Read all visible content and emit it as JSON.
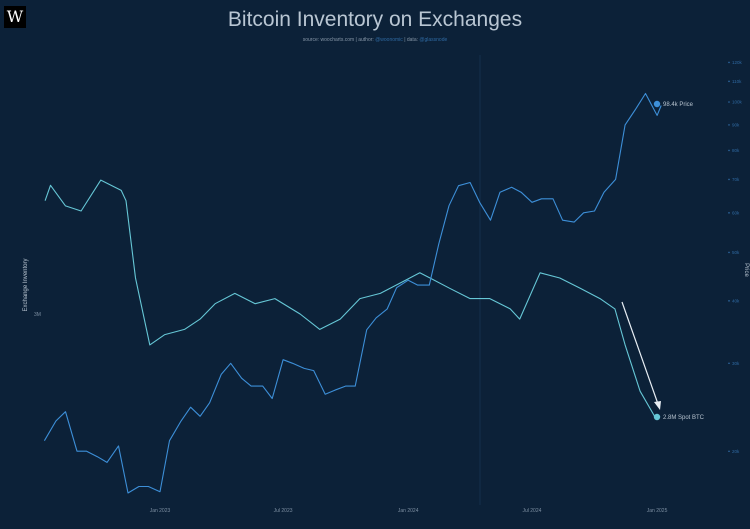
{
  "header": {
    "logo": "W",
    "title": "Bitcoin Inventory on Exchanges",
    "source_label": "source:",
    "source": "woocharts.com",
    "author_label": "| author:",
    "author": "@woonomic",
    "data_label": "| data:",
    "data": "@glassnode"
  },
  "colors": {
    "background": "#0c2138",
    "inventory": "#66c7d6",
    "price": "#3d8fd8",
    "arrow": "#e8eef4"
  },
  "chart_data": {
    "type": "line",
    "title": "Bitcoin Inventory on Exchanges",
    "ylabel_left": "Exchange Inventory",
    "ylabel_right": "Price",
    "x_ticks": [
      "Jan 2023",
      "Jul 2023",
      "Jan 2024",
      "Jul 2024",
      "Jan 2025"
    ],
    "left_ticks": [
      "3M"
    ],
    "right_ticks": [
      "120k",
      "110k",
      "100k",
      "90k",
      "80k",
      "70k",
      "60k",
      "50k",
      "40k",
      "30k",
      "20k"
    ],
    "right_scale": "log",
    "grid": false,
    "annotations": [
      "98.4k Price",
      "2.8M Spot BTC"
    ],
    "series": [
      {
        "name": "Spot BTC",
        "axis": "left",
        "unit": "M BTC",
        "x": [
          "2022-07-16",
          "2022-07-24",
          "2022-08-15",
          "2022-09-07",
          "2022-10-06",
          "2022-11-05",
          "2022-11-12",
          "2022-11-26",
          "2022-12-17",
          "2023-01-08",
          "2023-02-06",
          "2023-03-01",
          "2023-03-23",
          "2023-04-21",
          "2023-05-21",
          "2023-06-19",
          "2023-07-26",
          "2023-08-24",
          "2023-09-23",
          "2023-10-22",
          "2023-11-21",
          "2023-12-20",
          "2024-01-18",
          "2024-02-02",
          "2024-03-02",
          "2024-04-01",
          "2024-04-30",
          "2024-05-30",
          "2024-06-13",
          "2024-07-13",
          "2024-08-11",
          "2024-09-10",
          "2024-10-09",
          "2024-10-31",
          "2024-11-15",
          "2024-12-07",
          "2024-12-29"
        ],
        "values": [
          3.22,
          3.25,
          3.21,
          3.2,
          3.26,
          3.24,
          3.22,
          3.07,
          2.94,
          2.96,
          2.97,
          2.99,
          3.02,
          3.04,
          3.02,
          3.03,
          3.0,
          2.97,
          2.99,
          3.03,
          3.04,
          3.06,
          3.08,
          3.07,
          3.05,
          3.03,
          3.03,
          3.01,
          2.99,
          3.08,
          3.07,
          3.05,
          3.03,
          3.01,
          2.94,
          2.85,
          2.8
        ]
      },
      {
        "name": "Price",
        "axis": "right",
        "unit": "USD",
        "x": [
          "2022-07-15",
          "2022-08-01",
          "2022-08-15",
          "2022-09-01",
          "2022-09-15",
          "2022-10-01",
          "2022-10-15",
          "2022-11-01",
          "2022-11-15",
          "2022-12-01",
          "2022-12-15",
          "2023-01-01",
          "2023-01-15",
          "2023-02-01",
          "2023-02-15",
          "2023-03-01",
          "2023-03-15",
          "2023-04-01",
          "2023-04-15",
          "2023-05-01",
          "2023-05-15",
          "2023-06-01",
          "2023-06-15",
          "2023-07-01",
          "2023-07-15",
          "2023-08-01",
          "2023-08-15",
          "2023-09-01",
          "2023-09-15",
          "2023-10-01",
          "2023-10-15",
          "2023-11-01",
          "2023-11-15",
          "2023-12-01",
          "2023-12-15",
          "2024-01-01",
          "2024-01-15",
          "2024-02-01",
          "2024-02-15",
          "2024-03-01",
          "2024-03-15",
          "2024-04-01",
          "2024-04-15",
          "2024-05-01",
          "2024-05-15",
          "2024-06-01",
          "2024-06-15",
          "2024-07-01",
          "2024-07-15",
          "2024-08-01",
          "2024-08-15",
          "2024-09-01",
          "2024-09-15",
          "2024-10-01",
          "2024-10-15",
          "2024-11-01",
          "2024-11-15",
          "2024-12-01",
          "2024-12-15",
          "2025-01-01",
          "2025-01-07"
        ],
        "values": [
          21000,
          23000,
          24000,
          20000,
          20000,
          19500,
          19000,
          20500,
          16500,
          17000,
          17000,
          16600,
          21000,
          23000,
          24500,
          23500,
          25000,
          28500,
          30000,
          28000,
          27000,
          27000,
          25500,
          30500,
          30000,
          29300,
          29000,
          26000,
          26500,
          27000,
          27000,
          35000,
          37000,
          38500,
          42500,
          44000,
          43000,
          43000,
          52000,
          62000,
          68000,
          69000,
          63000,
          58000,
          66000,
          67500,
          66000,
          63000,
          64000,
          64000,
          58000,
          57500,
          60000,
          60500,
          66000,
          70000,
          90000,
          97000,
          104000,
          94000,
          98400
        ]
      }
    ]
  }
}
